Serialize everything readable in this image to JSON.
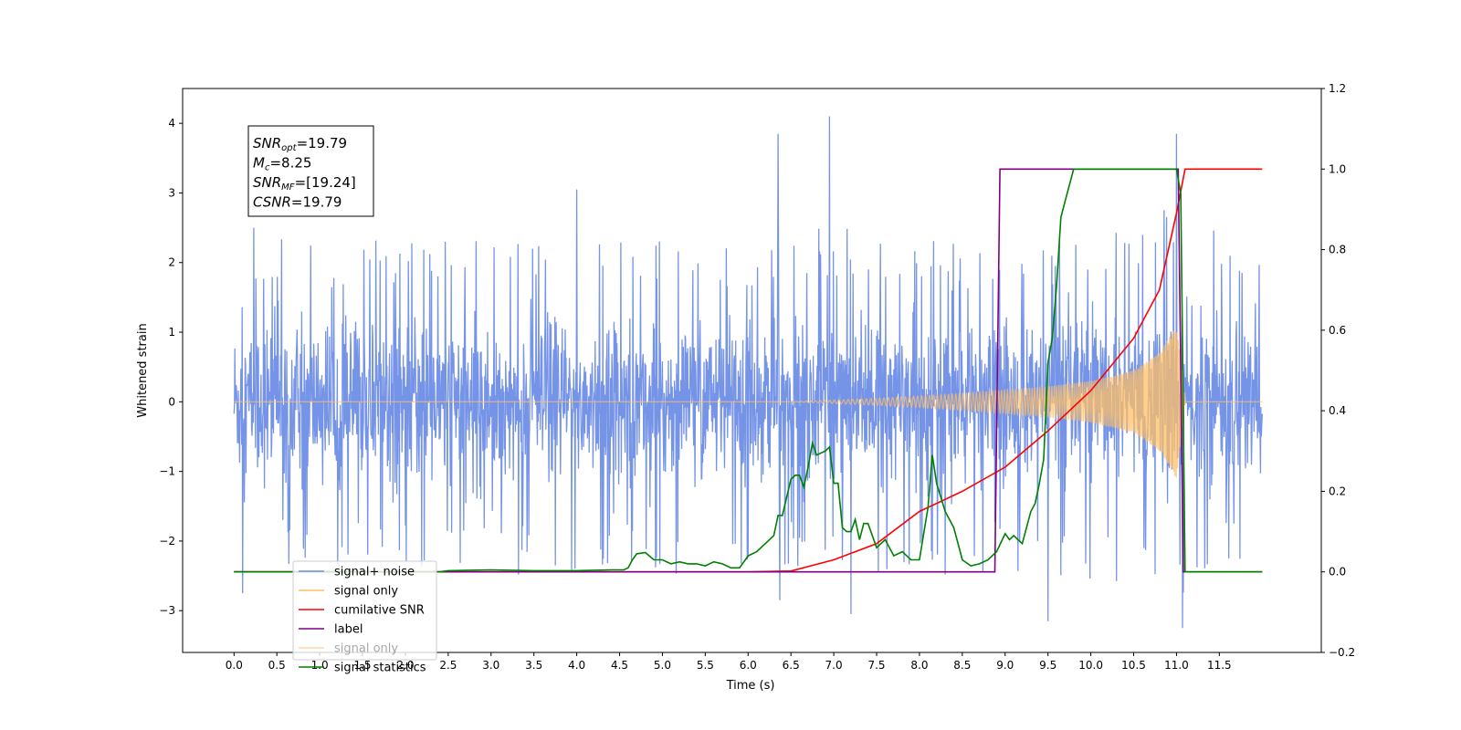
{
  "chart_data": {
    "type": "line",
    "title": "",
    "xlabel": "Time (s)",
    "ylabel": "Whitened strain",
    "xlim": [
      -0.6,
      12.69
    ],
    "ylim": [
      -3.6,
      4.5
    ],
    "ylim_right": [
      -0.2,
      1.2
    ],
    "grid": false,
    "legend_placement": "lower left",
    "x_ticks": [
      "0.0",
      "0.5",
      "1.0",
      "1.5",
      "2.0",
      "2.5",
      "3.0",
      "3.5",
      "4.0",
      "4.5",
      "5.0",
      "5.5",
      "6.0",
      "6.5",
      "7.0",
      "7.5",
      "8.0",
      "8.5",
      "9.0",
      "9.5",
      "10.0",
      "10.5",
      "11.0",
      "11.5"
    ],
    "y_ticks_left": [
      "−3",
      "−2",
      "−1",
      "0",
      "1",
      "2",
      "3",
      "4"
    ],
    "y_ticks_right": [
      "−0.2",
      "0.0",
      "0.2",
      "0.4",
      "0.6",
      "0.8",
      "1.0",
      "1.2"
    ],
    "annotation": {
      "lines": [
        {
          "sym": "SNR",
          "sub": "opt",
          "rest": "=19.79"
        },
        {
          "sym": "M",
          "sub": "c",
          "rest": "=8.25"
        },
        {
          "sym": "SNR",
          "sub": "MF",
          "rest": "=[19.24]"
        },
        {
          "sym": "CSNR",
          "sub": "",
          "rest": "=19.79"
        }
      ]
    },
    "legend": [
      {
        "label": "signal+ noise",
        "color": "#6f8ee6"
      },
      {
        "label": "signal only",
        "color": "#ffbf66"
      },
      {
        "label": "cumilative SNR",
        "color": "#ff0000"
      },
      {
        "label": "label",
        "color": "#800080"
      },
      {
        "label": "signal only",
        "color": "#ffbf66",
        "faded": true
      },
      {
        "label": "signal statistics",
        "color": "#008000"
      }
    ],
    "series": [
      {
        "name": "signal+ noise",
        "axis": "left",
        "color": "#6f8ee6",
        "envelope_x": [
          0.0,
          0.5,
          1.0,
          2.0,
          3.0,
          4.0,
          5.0,
          6.0,
          7.0,
          8.0,
          9.0,
          10.0,
          11.0,
          11.5,
          12.0
        ],
        "envelope_upper": [
          1.6,
          2.4,
          2.3,
          2.4,
          2.3,
          2.5,
          2.4,
          2.3,
          2.6,
          2.3,
          2.4,
          2.3,
          3.0,
          2.4,
          2.2
        ],
        "envelope_lower": [
          -1.6,
          -2.4,
          -2.4,
          -2.5,
          -2.5,
          -2.5,
          -2.5,
          -2.6,
          -2.6,
          -2.5,
          -2.5,
          -2.7,
          -3.0,
          -2.5,
          -2.3
        ],
        "peaks": [
          [
            0.1,
            -2.75
          ],
          [
            6.35,
            3.85
          ],
          [
            6.37,
            -2.85
          ],
          [
            6.95,
            4.1
          ],
          [
            7.2,
            -3.05
          ],
          [
            9.5,
            -3.15
          ],
          [
            11.0,
            3.85
          ],
          [
            11.07,
            -3.25
          ],
          [
            4.0,
            3.05
          ],
          [
            0.23,
            2.5
          ]
        ]
      },
      {
        "name": "signal only",
        "axis": "left",
        "color": "#ffbf66",
        "t": [
          0.0,
          6.5,
          7.5,
          8.5,
          9.5,
          10.0,
          10.5,
          10.8,
          10.95,
          11.0,
          11.05,
          11.1,
          12.0
        ],
        "amplitude": [
          0.0,
          0.0,
          0.05,
          0.12,
          0.22,
          0.3,
          0.45,
          0.7,
          1.0,
          1.1,
          0.6,
          0.0,
          0.0
        ]
      },
      {
        "name": "cumilative SNR",
        "axis": "right",
        "color": "#ff0000",
        "x": [
          0.0,
          6.0,
          6.5,
          7.0,
          7.5,
          8.0,
          8.5,
          9.0,
          9.5,
          10.0,
          10.5,
          10.8,
          11.0,
          11.1,
          12.0
        ],
        "y": [
          0.0,
          0.0,
          0.002,
          0.03,
          0.07,
          0.15,
          0.2,
          0.26,
          0.35,
          0.45,
          0.58,
          0.7,
          0.89,
          1.0,
          1.0
        ]
      },
      {
        "name": "label",
        "axis": "right",
        "color": "#800080",
        "x": [
          0.0,
          8.88,
          8.94,
          11.02,
          11.08,
          12.0
        ],
        "y": [
          0.0,
          0.0,
          1.0,
          1.0,
          0.0,
          0.0
        ]
      },
      {
        "name": "signal statistics",
        "axis": "right",
        "color": "#008000",
        "x": [
          0.0,
          2.4,
          2.5,
          3.0,
          3.5,
          4.0,
          4.4,
          4.55,
          4.6,
          4.65,
          4.7,
          4.8,
          4.9,
          5.0,
          5.1,
          5.2,
          5.3,
          5.4,
          5.5,
          5.6,
          5.7,
          5.8,
          5.9,
          6.0,
          6.1,
          6.2,
          6.3,
          6.35,
          6.4,
          6.5,
          6.55,
          6.6,
          6.65,
          6.7,
          6.75,
          6.8,
          6.9,
          6.95,
          7.0,
          7.05,
          7.1,
          7.15,
          7.2,
          7.25,
          7.3,
          7.35,
          7.4,
          7.5,
          7.6,
          7.7,
          7.8,
          7.9,
          8.0,
          8.1,
          8.15,
          8.2,
          8.3,
          8.4,
          8.5,
          8.6,
          8.7,
          8.8,
          8.9,
          9.0,
          9.05,
          9.1,
          9.2,
          9.3,
          9.35,
          9.4,
          9.45,
          9.5,
          9.55,
          9.6,
          9.65,
          9.7,
          9.8,
          10.0,
          10.5,
          11.0,
          11.05,
          11.1,
          11.15,
          11.3,
          12.0
        ],
        "y": [
          0.0,
          0.0,
          0.003,
          0.005,
          0.003,
          0.003,
          0.005,
          0.005,
          0.01,
          0.03,
          0.045,
          0.048,
          0.03,
          0.03,
          0.02,
          0.025,
          0.02,
          0.02,
          0.015,
          0.025,
          0.02,
          0.01,
          0.01,
          0.04,
          0.05,
          0.07,
          0.09,
          0.14,
          0.14,
          0.23,
          0.24,
          0.24,
          0.21,
          0.26,
          0.32,
          0.29,
          0.3,
          0.31,
          0.22,
          0.22,
          0.11,
          0.1,
          0.1,
          0.13,
          0.08,
          0.12,
          0.12,
          0.06,
          0.08,
          0.04,
          0.05,
          0.03,
          0.03,
          0.16,
          0.29,
          0.22,
          0.15,
          0.11,
          0.03,
          0.015,
          0.02,
          0.03,
          0.05,
          0.095,
          0.08,
          0.09,
          0.07,
          0.15,
          0.17,
          0.22,
          0.28,
          0.52,
          0.58,
          0.71,
          0.88,
          0.92,
          1.0,
          1.0,
          1.0,
          1.0,
          0.94,
          0.0,
          0.0,
          0.0,
          0.0
        ]
      }
    ]
  }
}
